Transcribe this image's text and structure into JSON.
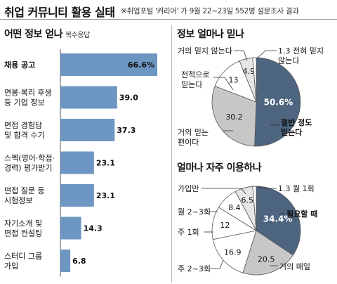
{
  "header": {
    "title": "취업 커뮤니티 활용 실태",
    "subtitle": "※취업포털 '커리어' 가 9월 22~23일 552명 설문조사 결과"
  },
  "chart_data": [
    {
      "type": "bar",
      "orientation": "horizontal",
      "title": "어떤 정보 얻나",
      "note": "복수응답",
      "categories": [
        "채용 공고",
        "연봉·복리 후생\n등 기업 정보",
        "면접 경험담\n및 합격 수기",
        "스펙(영어·학점·\n경력) 평가받기",
        "면접 질문 등\n시험정보",
        "자기소개 및\n면접 컨설팅",
        "스터디 그룹\n가입"
      ],
      "values": [
        66.6,
        39.0,
        37.3,
        23.1,
        23.1,
        14.3,
        6.8
      ],
      "value_labels": [
        "66.6%",
        "39.0",
        "37.3",
        "23.1",
        "23.1",
        "14.3",
        "6.8"
      ],
      "xlim": [
        0,
        66.6
      ],
      "bar_color": "#6d97c2",
      "grid": false
    },
    {
      "type": "pie",
      "title": "정보 얼마나 믿나",
      "slices": [
        {
          "label": "절반 정도\n믿는다",
          "value": 50.6,
          "value_label": "50.6%",
          "color": "#4e6580"
        },
        {
          "label": "거의 믿는\n편이다",
          "value": 30.2,
          "value_label": "30.2",
          "color": "#c7c7c7"
        },
        {
          "label": "전적으로\n믿는다",
          "value": 13,
          "value_label": "13",
          "color": "#ffffff"
        },
        {
          "label": "거의 믿지 않는다",
          "value": 4.9,
          "value_label": "4.9",
          "color": "#e6e6e6"
        },
        {
          "label": "1.3 전혀 믿지\n않는다",
          "value": 1.3,
          "value_label": "",
          "color": "#ffffff"
        }
      ]
    },
    {
      "type": "pie",
      "title": "얼마나 자주 이용하나",
      "slices": [
        {
          "label": "필요할 때",
          "value": 34.4,
          "value_label": "34.4%",
          "color": "#4e6580"
        },
        {
          "label": "거의 매일",
          "value": 20.5,
          "value_label": "20.5",
          "color": "#c7c7c7"
        },
        {
          "label": "주 2~3회",
          "value": 16.9,
          "value_label": "16.9",
          "color": "#ffffff"
        },
        {
          "label": "주 1회",
          "value": 12,
          "value_label": "12",
          "color": "#ffffff"
        },
        {
          "label": "월 2~3회",
          "value": 8.4,
          "value_label": "8.4",
          "color": "#ffffff"
        },
        {
          "label": "가입만",
          "value": 6.5,
          "value_label": "6.5",
          "color": "#e6e6e6"
        },
        {
          "label": "1.3 월 1회",
          "value": 1.3,
          "value_label": "",
          "color": "#ffffff"
        }
      ]
    }
  ]
}
